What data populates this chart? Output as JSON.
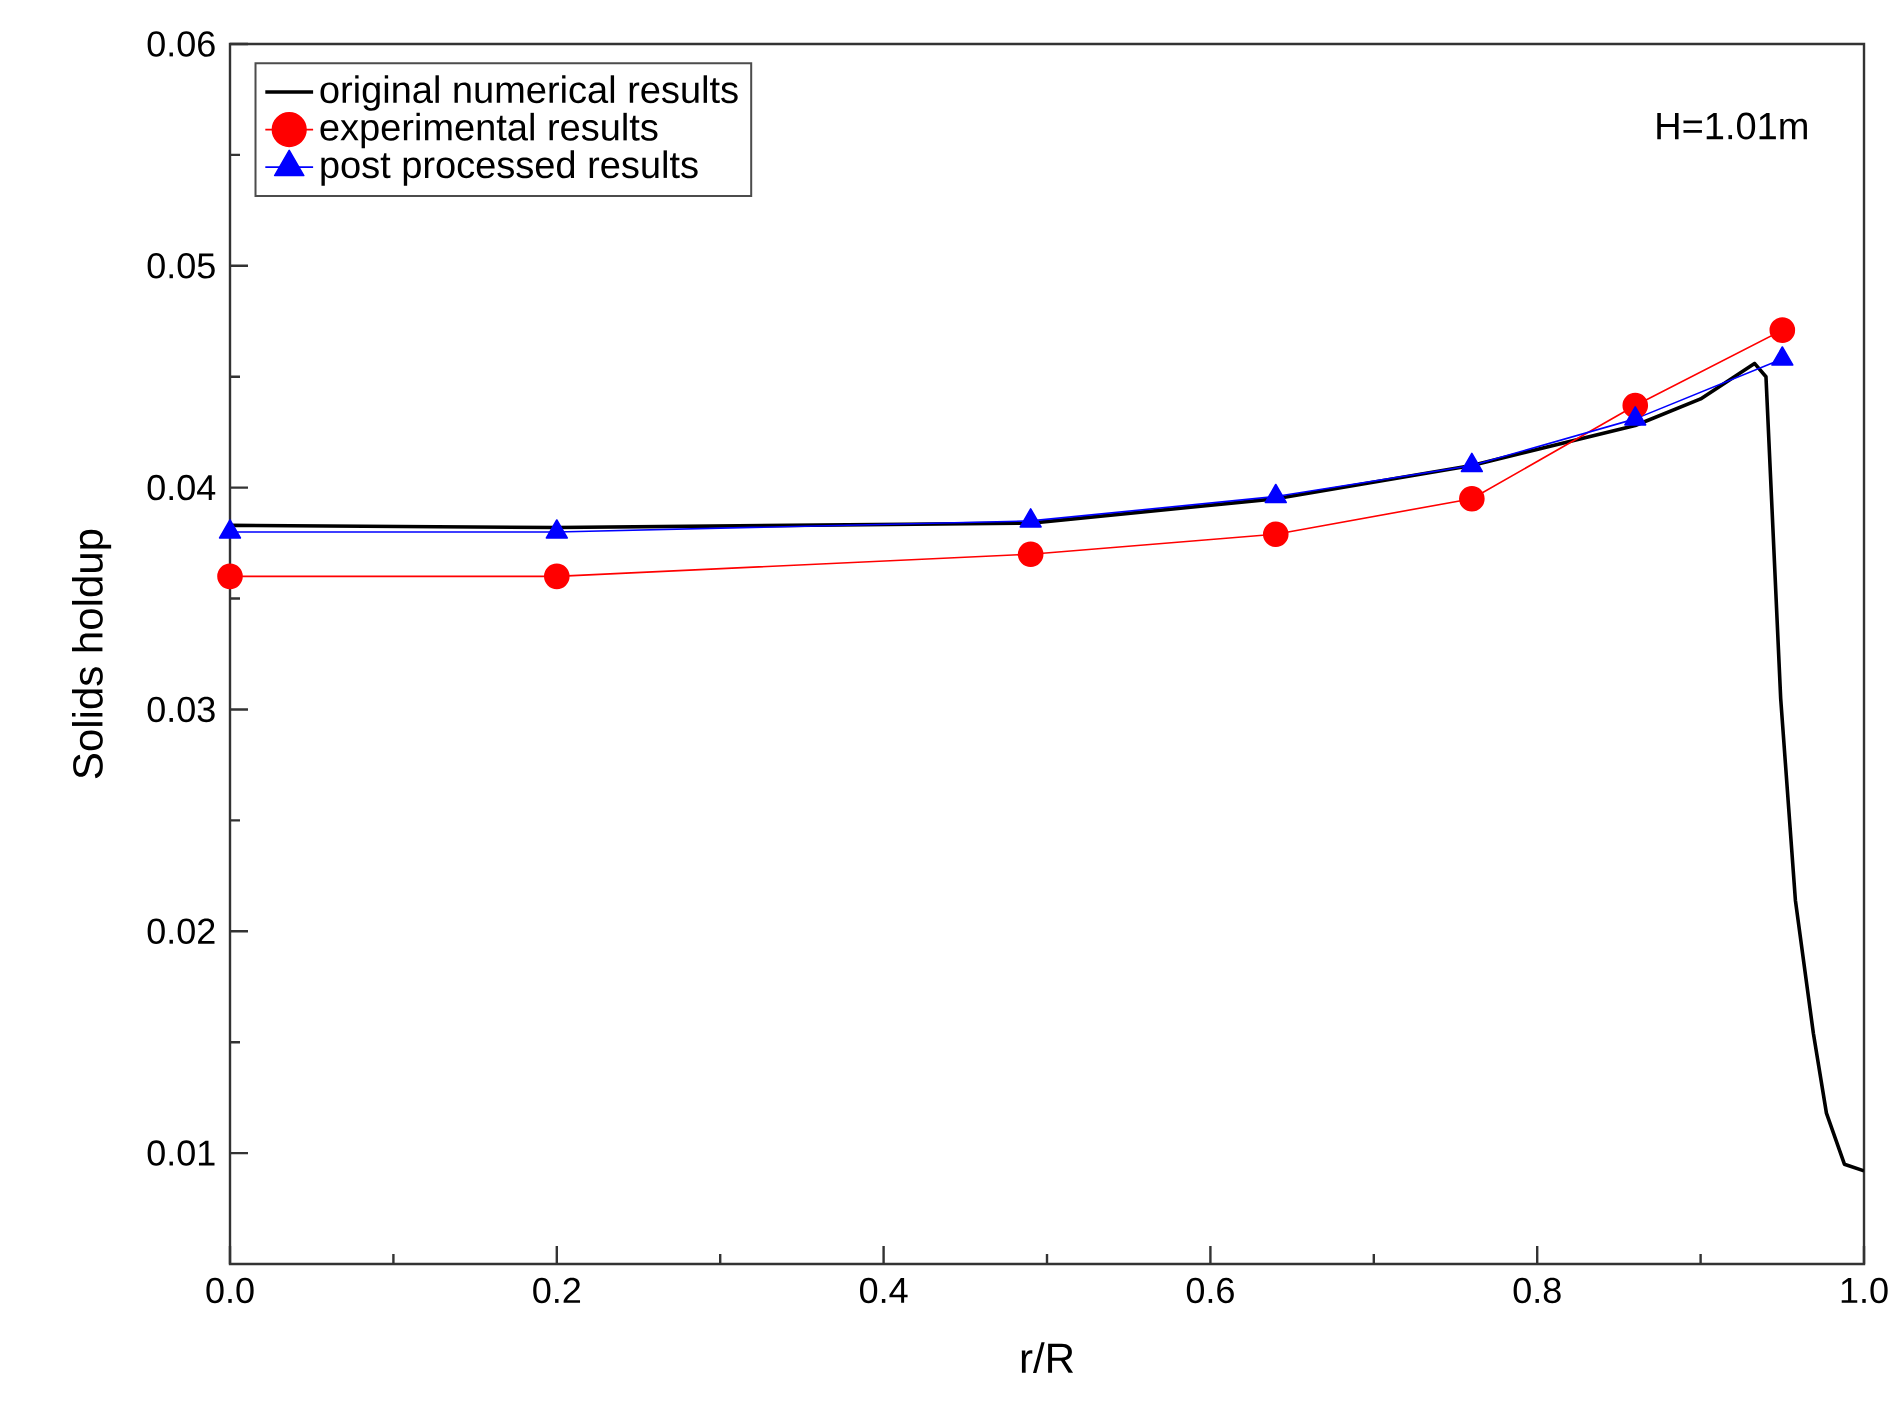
{
  "chart_data": {
    "type": "line",
    "xlabel": "r/R",
    "ylabel": "Solids holdup",
    "annotations": [
      "H=1.01m"
    ],
    "xlim": [
      0,
      1
    ],
    "xticks": [
      {
        "value": 0,
        "label": "0.0"
      },
      0.2,
      0.4,
      0.6,
      0.8,
      {
        "value": 1,
        "label": "1.0"
      }
    ],
    "ylim": [
      0.005,
      0.06
    ],
    "yticks": [
      0.01,
      0.02,
      0.03,
      0.04,
      0.05,
      0.06
    ],
    "legend": "top left",
    "grid": false,
    "series": [
      {
        "name": "original numerical results",
        "color": "#000000",
        "marker": "none",
        "x": [
          0,
          0.2,
          0.49,
          0.64,
          0.76,
          0.86,
          0.9,
          0.933,
          0.94,
          0.949,
          0.958,
          0.969,
          0.977,
          0.988,
          1.0
        ],
        "values": [
          0.0383,
          0.0382,
          0.0384,
          0.0395,
          0.041,
          0.0428,
          0.044,
          0.0456,
          0.045,
          0.0305,
          0.0214,
          0.0154,
          0.0118,
          0.0095,
          0.0092
        ]
      },
      {
        "name": "experimental results",
        "color": "#ff0000",
        "marker": "circle",
        "x": [
          0,
          0.2,
          0.49,
          0.64,
          0.76,
          0.86,
          0.95
        ],
        "values": [
          0.036,
          0.036,
          0.037,
          0.0379,
          0.0395,
          0.0437,
          0.0471
        ]
      },
      {
        "name": "post processed results",
        "color": "#0000ff",
        "marker": "triangle",
        "x": [
          0,
          0.2,
          0.49,
          0.64,
          0.76,
          0.86,
          0.95
        ],
        "values": [
          0.038,
          0.038,
          0.0385,
          0.0396,
          0.041,
          0.0431,
          0.0458
        ]
      }
    ]
  }
}
